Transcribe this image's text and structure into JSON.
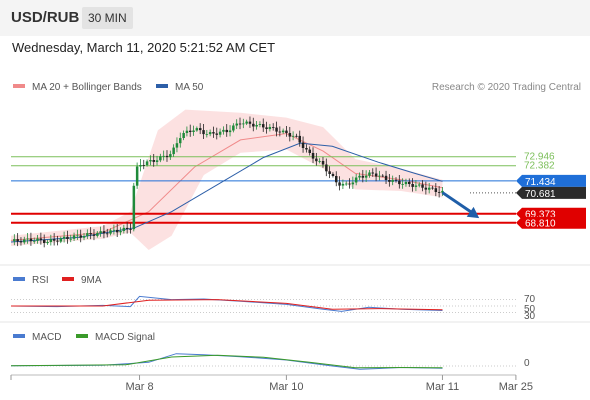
{
  "header": {
    "symbol": "USD/RUB",
    "timeframe": "30 MIN"
  },
  "datetime": "Wednesday, March 11, 2020 5:21:52 AM CET",
  "main_panel": {
    "legend": [
      {
        "label": "MA 20 + Bollinger Bands",
        "color": "#f08a8a"
      },
      {
        "label": "MA 50",
        "color": "#2d5fa8"
      }
    ],
    "copyright": "Research © 2020 Trading Central"
  },
  "rsi_panel": {
    "legend": [
      {
        "label": "RSI",
        "color": "#4a7bd0"
      },
      {
        "label": "9MA",
        "color": "#e02020"
      }
    ],
    "levels": [
      "70",
      "50",
      "30"
    ]
  },
  "macd_panel": {
    "legend": [
      {
        "label": "MACD",
        "color": "#4a7bd0"
      },
      {
        "label": "MACD Signal",
        "color": "#3a9a2a"
      }
    ],
    "levels": [
      "0"
    ]
  },
  "chart_data": {
    "type": "line",
    "title": "USD/RUB",
    "y_range": [
      66.6,
      76.5
    ],
    "x_labels": [
      "Mar 8",
      "Mar 10",
      "Mar 11",
      "Mar 25"
    ],
    "price_path": [
      {
        "t": 0,
        "v": 67.65
      },
      {
        "t": 0.05,
        "v": 67.75
      },
      {
        "t": 0.08,
        "v": 67.62
      },
      {
        "t": 0.12,
        "v": 67.85
      },
      {
        "t": 0.18,
        "v": 68.1
      },
      {
        "t": 0.24,
        "v": 68.35
      },
      {
        "t": 0.26,
        "v": 68.42
      },
      {
        "t": 0.27,
        "v": 72.0
      },
      {
        "t": 0.28,
        "v": 72.45
      },
      {
        "t": 0.31,
        "v": 72.7
      },
      {
        "t": 0.35,
        "v": 73.15
      },
      {
        "t": 0.37,
        "v": 74.3
      },
      {
        "t": 0.4,
        "v": 74.7
      },
      {
        "t": 0.43,
        "v": 74.35
      },
      {
        "t": 0.47,
        "v": 74.55
      },
      {
        "t": 0.5,
        "v": 75.1
      },
      {
        "t": 0.53,
        "v": 74.95
      },
      {
        "t": 0.57,
        "v": 74.7
      },
      {
        "t": 0.62,
        "v": 74.2
      },
      {
        "t": 0.65,
        "v": 73.1
      },
      {
        "t": 0.68,
        "v": 72.4
      },
      {
        "t": 0.71,
        "v": 71.3
      },
      {
        "t": 0.73,
        "v": 71.15
      },
      {
        "t": 0.76,
        "v": 71.7
      },
      {
        "t": 0.79,
        "v": 71.9
      },
      {
        "t": 0.82,
        "v": 71.5
      },
      {
        "t": 0.85,
        "v": 71.3
      },
      {
        "t": 0.88,
        "v": 71.15
      },
      {
        "t": 0.91,
        "v": 70.95
      },
      {
        "t": 0.94,
        "v": 70.7
      }
    ],
    "ma50": [
      {
        "t": 0,
        "v": 67.6
      },
      {
        "t": 0.15,
        "v": 67.9
      },
      {
        "t": 0.27,
        "v": 68.5
      },
      {
        "t": 0.35,
        "v": 69.5
      },
      {
        "t": 0.45,
        "v": 71.2
      },
      {
        "t": 0.55,
        "v": 72.9
      },
      {
        "t": 0.63,
        "v": 73.8
      },
      {
        "t": 0.7,
        "v": 73.6
      },
      {
        "t": 0.8,
        "v": 72.6
      },
      {
        "t": 0.88,
        "v": 71.9
      },
      {
        "t": 0.94,
        "v": 71.4
      }
    ],
    "ma20": [
      {
        "t": 0,
        "v": 67.7
      },
      {
        "t": 0.2,
        "v": 68.2
      },
      {
        "t": 0.3,
        "v": 69.5
      },
      {
        "t": 0.4,
        "v": 72.3
      },
      {
        "t": 0.5,
        "v": 74.0
      },
      {
        "t": 0.6,
        "v": 74.4
      },
      {
        "t": 0.68,
        "v": 73.3
      },
      {
        "t": 0.75,
        "v": 71.9
      },
      {
        "t": 0.85,
        "v": 71.5
      },
      {
        "t": 0.94,
        "v": 71.0
      }
    ],
    "bb_upper": [
      {
        "t": 0,
        "v": 68.0
      },
      {
        "t": 0.2,
        "v": 68.6
      },
      {
        "t": 0.26,
        "v": 69.5
      },
      {
        "t": 0.32,
        "v": 74.6
      },
      {
        "t": 0.38,
        "v": 75.9
      },
      {
        "t": 0.5,
        "v": 75.7
      },
      {
        "t": 0.6,
        "v": 75.4
      },
      {
        "t": 0.68,
        "v": 74.8
      },
      {
        "t": 0.75,
        "v": 72.8
      },
      {
        "t": 0.85,
        "v": 72.2
      },
      {
        "t": 0.94,
        "v": 71.5
      }
    ],
    "bb_lower": [
      {
        "t": 0,
        "v": 67.35
      },
      {
        "t": 0.2,
        "v": 67.8
      },
      {
        "t": 0.26,
        "v": 68.2
      },
      {
        "t": 0.3,
        "v": 67.1
      },
      {
        "t": 0.35,
        "v": 68.0
      },
      {
        "t": 0.42,
        "v": 71.8
      },
      {
        "t": 0.5,
        "v": 73.2
      },
      {
        "t": 0.6,
        "v": 73.4
      },
      {
        "t": 0.68,
        "v": 72.2
      },
      {
        "t": 0.75,
        "v": 70.9
      },
      {
        "t": 0.85,
        "v": 70.8
      },
      {
        "t": 0.94,
        "v": 70.4
      }
    ],
    "horizontal_lines": [
      {
        "value": 72.946,
        "label": "72.946",
        "color": "#7cbf5a",
        "kind": "resistance"
      },
      {
        "value": 72.382,
        "label": "72.382",
        "color": "#7cbf5a",
        "kind": "resistance"
      },
      {
        "value": 71.434,
        "label": "71.434",
        "color": "#1f6fd8",
        "kind": "pivot"
      },
      {
        "value": 70.681,
        "label": "70.681",
        "color": "#2b2b2b",
        "kind": "last"
      },
      {
        "value": 69.373,
        "label": "69.373",
        "color": "#e00000",
        "kind": "support"
      },
      {
        "value": 68.81,
        "label": "68.810",
        "color": "#e00000",
        "kind": "support"
      }
    ],
    "forecast_arrow": {
      "from": {
        "t": 0.94,
        "v": 70.7
      },
      "to": {
        "t": 1.02,
        "v": 69.1
      },
      "color": "#1f5ea8"
    },
    "rsi": [
      {
        "t": 0,
        "v": 50
      },
      {
        "t": 0.1,
        "v": 48
      },
      {
        "t": 0.2,
        "v": 52
      },
      {
        "t": 0.26,
        "v": 48
      },
      {
        "t": 0.28,
        "v": 80
      },
      {
        "t": 0.35,
        "v": 70
      },
      {
        "t": 0.42,
        "v": 72
      },
      {
        "t": 0.5,
        "v": 65
      },
      {
        "t": 0.6,
        "v": 55
      },
      {
        "t": 0.68,
        "v": 40
      },
      {
        "t": 0.72,
        "v": 33
      },
      {
        "t": 0.78,
        "v": 46
      },
      {
        "t": 0.85,
        "v": 40
      },
      {
        "t": 0.94,
        "v": 36
      }
    ],
    "rsi_ma": [
      {
        "t": 0,
        "v": 50
      },
      {
        "t": 0.2,
        "v": 50
      },
      {
        "t": 0.3,
        "v": 68
      },
      {
        "t": 0.45,
        "v": 70
      },
      {
        "t": 0.6,
        "v": 58
      },
      {
        "t": 0.7,
        "v": 40
      },
      {
        "t": 0.8,
        "v": 42
      },
      {
        "t": 0.94,
        "v": 38
      }
    ],
    "rsi_range": [
      0,
      100
    ],
    "macd": [
      {
        "t": 0,
        "v": 0.02
      },
      {
        "t": 0.2,
        "v": 0.05
      },
      {
        "t": 0.3,
        "v": 0.25
      },
      {
        "t": 0.36,
        "v": 0.82
      },
      {
        "t": 0.42,
        "v": 0.75
      },
      {
        "t": 0.5,
        "v": 0.62
      },
      {
        "t": 0.6,
        "v": 0.4
      },
      {
        "t": 0.7,
        "v": 0.0
      },
      {
        "t": 0.76,
        "v": -0.22
      },
      {
        "t": 0.85,
        "v": -0.1
      },
      {
        "t": 0.94,
        "v": -0.15
      }
    ],
    "macd_signal": [
      {
        "t": 0,
        "v": 0.02
      },
      {
        "t": 0.25,
        "v": 0.08
      },
      {
        "t": 0.35,
        "v": 0.6
      },
      {
        "t": 0.45,
        "v": 0.72
      },
      {
        "t": 0.55,
        "v": 0.58
      },
      {
        "t": 0.65,
        "v": 0.25
      },
      {
        "t": 0.75,
        "v": -0.12
      },
      {
        "t": 0.85,
        "v": -0.1
      },
      {
        "t": 0.94,
        "v": -0.12
      }
    ],
    "macd_range": [
      -0.6,
      1.4
    ],
    "grid": false,
    "legend_position": "top-left"
  }
}
